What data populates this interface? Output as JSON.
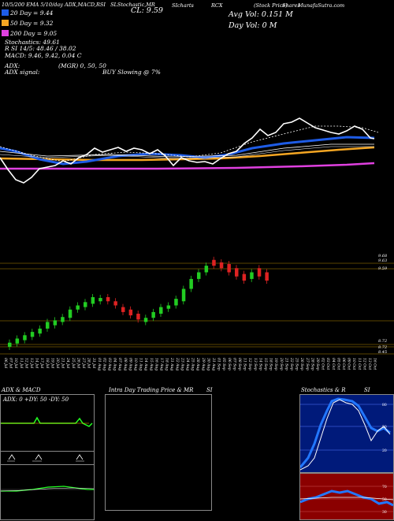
{
  "header": {
    "c1": "10/5/200 EMA 5/10/day",
    "c2": "ADX,MACD,RSI",
    "c3": "SLStochastic,MR",
    "c4": "SIcharts",
    "c5": "RCX",
    "c6": "MunafaSutra.com",
    "c7": "(Stock Price)",
    "c8": "Shares",
    "close_label": "CL: 9.59",
    "avg_vol": "Avg Vol: 0.151  M",
    "day_vol": "Day Vol: 0   M"
  },
  "legend": [
    {
      "text": "20  Day = 9.44",
      "color": "#1e5ce6"
    },
    {
      "text": "50  Day = 9.32",
      "color": "#f5a623"
    },
    {
      "text": "200  Day = 9.05",
      "color": "#e040e0"
    }
  ],
  "indicators": {
    "stoch": "Stochastics: 49.61",
    "si_line": "R                    SI 14/5: 48.46  / 38.02",
    "macd": "MACD: 9.46,  9.42,  0.04   C",
    "adx": "ADX:",
    "adx_signal": "ADX  signal:",
    "mgr": "(MGR) 0,  50,  50",
    "buy": "BUY Slowing @ 7%"
  },
  "price_labels": {
    "p1": "9.68",
    "p2": "9.63",
    "p3": "9.59",
    "p4": "8.72",
    "p5": "8.72",
    "p6": "8.45"
  },
  "dates": [
    "06 Jul",
    "07 Jul",
    "10 Jul",
    "11 Jul",
    "12 Jul",
    "13 Jul",
    "14 Jul",
    "17 Jul",
    "18 Jul",
    "19 Jul",
    "20 Jul",
    "21 Jul",
    "24 Jul",
    "25 Jul",
    "26 Jul",
    "27 Jul",
    "28 Jul",
    "31 Jul",
    "01 Aug",
    "02 Aug",
    "03 Aug",
    "04 Aug",
    "07 Aug",
    "08 Aug",
    "09 Aug",
    "10 Aug",
    "11 Aug",
    "14 Aug",
    "15 Aug",
    "16 Aug",
    "17 Aug",
    "18 Aug",
    "21 Aug",
    "22 Aug",
    "23 Aug",
    "24 Aug",
    "25 Aug",
    "28 Aug",
    "29 Aug",
    "30 Aug",
    "31 Aug",
    "01 Sep",
    "05 Sep",
    "06 Sep",
    "07 Sep",
    "08 Sep",
    "11 Sep",
    "12 Sep",
    "13 Sep",
    "14 Sep",
    "15 Sep",
    "18 Sep",
    "19 Sep",
    "20 Sep",
    "21 Sep",
    "22 Sep",
    "25 Sep",
    "26 Sep",
    "27 Sep",
    "28 Sep",
    "29 Sep",
    "02 Oct",
    "03 Oct",
    "04 Oct",
    "05 Oct",
    "06 Oct",
    "09 Oct",
    "10 Oct",
    "11 Oct",
    "12 Oct",
    "13 Oct",
    "16 Oct"
  ],
  "candles": [
    {
      "o": 8.6,
      "c": 8.65,
      "up": true
    },
    {
      "o": 8.64,
      "c": 8.7,
      "up": true
    },
    {
      "o": 8.68,
      "c": 8.74,
      "up": true
    },
    {
      "o": 8.72,
      "c": 8.78,
      "up": true
    },
    {
      "o": 8.76,
      "c": 8.82,
      "up": true
    },
    {
      "o": 8.82,
      "c": 8.9,
      "up": true
    },
    {
      "o": 8.86,
      "c": 8.92,
      "up": true
    },
    {
      "o": 8.9,
      "c": 8.96,
      "up": true
    },
    {
      "o": 8.95,
      "c": 9.05,
      "up": true
    },
    {
      "o": 9.05,
      "c": 9.1,
      "up": true
    },
    {
      "o": 9.08,
      "c": 9.14,
      "up": true
    },
    {
      "o": 9.12,
      "c": 9.2,
      "up": true
    },
    {
      "o": 9.15,
      "c": 9.19,
      "up": true
    },
    {
      "o": 9.2,
      "c": 9.15,
      "up": false
    },
    {
      "o": 9.15,
      "c": 9.1,
      "up": false
    },
    {
      "o": 9.08,
      "c": 9.02,
      "up": false
    },
    {
      "o": 9.05,
      "c": 8.98,
      "up": false
    },
    {
      "o": 9.0,
      "c": 8.93,
      "up": false
    },
    {
      "o": 8.9,
      "c": 8.95,
      "up": true
    },
    {
      "o": 8.95,
      "c": 9.02,
      "up": true
    },
    {
      "o": 9.0,
      "c": 9.08,
      "up": true
    },
    {
      "o": 9.06,
      "c": 9.1,
      "up": true
    },
    {
      "o": 9.1,
      "c": 9.18,
      "up": true
    },
    {
      "o": 9.15,
      "c": 9.3,
      "up": true
    },
    {
      "o": 9.3,
      "c": 9.42,
      "up": true
    },
    {
      "o": 9.42,
      "c": 9.5,
      "up": true
    },
    {
      "o": 9.5,
      "c": 9.58,
      "up": true
    },
    {
      "o": 9.65,
      "c": 9.58,
      "up": false
    },
    {
      "o": 9.62,
      "c": 9.55,
      "up": false
    },
    {
      "o": 9.6,
      "c": 9.5,
      "up": false
    },
    {
      "o": 9.55,
      "c": 9.45,
      "up": false
    },
    {
      "o": 9.48,
      "c": 9.4,
      "up": false
    },
    {
      "o": 9.42,
      "c": 9.5,
      "up": true
    },
    {
      "o": 9.55,
      "c": 9.45,
      "up": false
    },
    {
      "o": 9.5,
      "c": 9.4,
      "up": false
    }
  ]
}
